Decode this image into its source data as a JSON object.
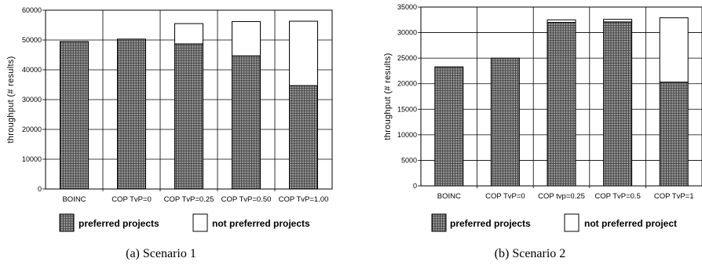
{
  "chart_data": [
    {
      "type": "bar",
      "stacked": true,
      "caption": "(a)  Scenario 1",
      "ylabel": "throughput (# results)",
      "ylim": [
        0,
        60000
      ],
      "yticks": [
        "0",
        "10000",
        "20000",
        "30000",
        "40000",
        "50000",
        "60000"
      ],
      "categories": [
        "BOINC",
        "COP TvP=0",
        "COP TvP=0.25",
        "COP TvP=0.50",
        "COP TvP=1.00"
      ],
      "series": [
        {
          "name": "preferred projects",
          "values": [
            49500,
            50300,
            48700,
            44700,
            34700
          ]
        },
        {
          "name": "not preferred projects",
          "values": [
            0,
            0,
            6800,
            11500,
            21600
          ]
        }
      ],
      "grid": true,
      "legend": "bottom"
    },
    {
      "type": "bar",
      "stacked": true,
      "caption": "(b)  Scenario 2",
      "ylabel": "throughput (# results)",
      "ylim": [
        0,
        35000
      ],
      "yticks": [
        "0",
        "5000",
        "10000",
        "15000",
        "20000",
        "25000",
        "30000",
        "35000"
      ],
      "categories": [
        "BOINC",
        "COP TvP=0",
        "COP tvp=0.25",
        "COP TvP=0.5",
        "COP TvP=1"
      ],
      "series": [
        {
          "name": "preferred projects",
          "values": [
            23300,
            25000,
            32000,
            32100,
            20300
          ]
        },
        {
          "name": "not preferred project",
          "values": [
            0,
            0,
            500,
            500,
            12600
          ]
        }
      ],
      "grid": true,
      "legend": "bottom"
    }
  ]
}
